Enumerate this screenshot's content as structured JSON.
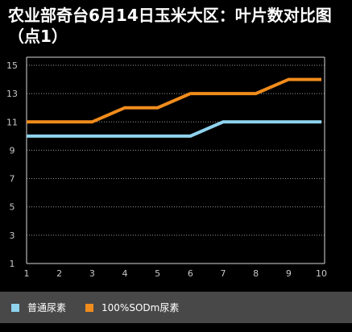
{
  "chart_data": {
    "type": "line",
    "title": "农业部奇台6月14日玉米大区：叶片数对比图（点1）",
    "x": [
      1,
      2,
      3,
      4,
      5,
      6,
      7,
      8,
      9,
      10
    ],
    "xlim": [
      1,
      10
    ],
    "ylim": [
      1,
      15
    ],
    "x_ticks": [
      "1",
      "2",
      "3",
      "4",
      "5",
      "6",
      "7",
      "8",
      "9",
      "10"
    ],
    "y_ticks": [
      "15",
      "13",
      "11",
      "9",
      "7",
      "5",
      "3",
      "1"
    ],
    "grid": true,
    "legend_position": "bottom",
    "series": [
      {
        "name": "普通尿素",
        "color": "#8fd3ee",
        "values": [
          10,
          10,
          10,
          10,
          10,
          10,
          11,
          11,
          11,
          11
        ]
      },
      {
        "name": "100%SODm尿素",
        "color": "#f08c1c",
        "values": [
          11,
          11,
          11,
          12,
          12,
          13,
          13,
          13,
          14,
          14
        ]
      }
    ]
  }
}
